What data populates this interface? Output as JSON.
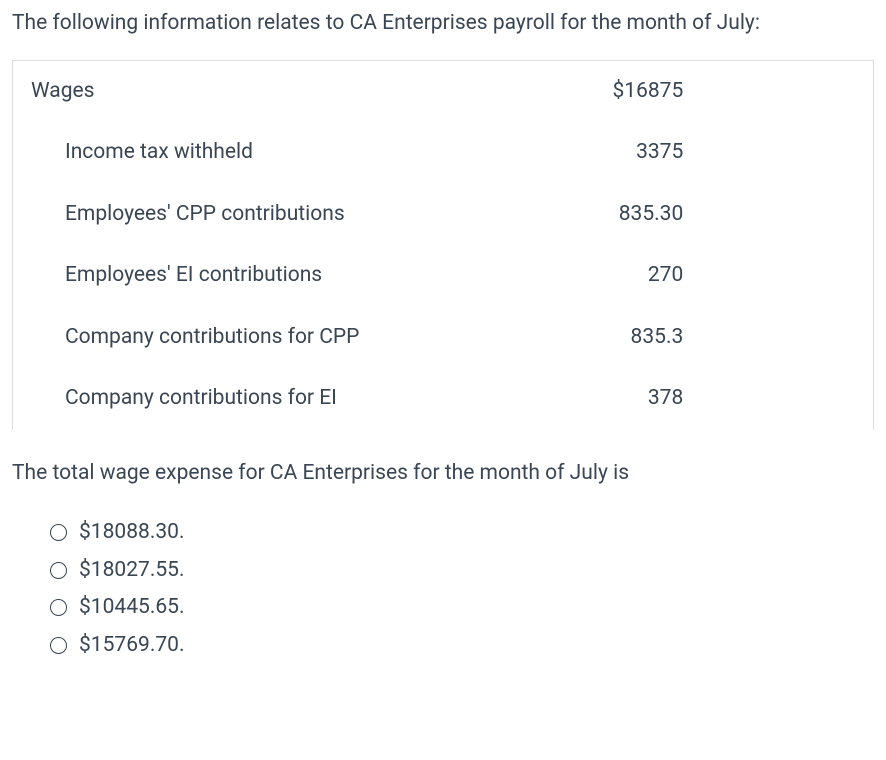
{
  "intro_text": "The following information relates to CA Enterprises payroll for the month of July:",
  "table": {
    "rows": [
      {
        "label": "Wages",
        "value": "$16875",
        "indent": false
      },
      {
        "label": "Income tax withheld",
        "value": "3375",
        "indent": true
      },
      {
        "label": "Employees' CPP contributions",
        "value": "835.30",
        "indent": true
      },
      {
        "label": "Employees' EI contributions",
        "value": "270",
        "indent": true
      },
      {
        "label": "Company contributions for CPP",
        "value": "835.3",
        "indent": true
      },
      {
        "label": "Company contributions for EI",
        "value": "378",
        "indent": true
      }
    ]
  },
  "question_text": "The total wage expense for CA Enterprises for the month of July is",
  "options": [
    "$18088.30.",
    "$18027.55.",
    "$10445.65.",
    "$15769.70."
  ],
  "colors": {
    "text": "#3a4653",
    "border": "#dcdcdc",
    "background": "#ffffff"
  }
}
